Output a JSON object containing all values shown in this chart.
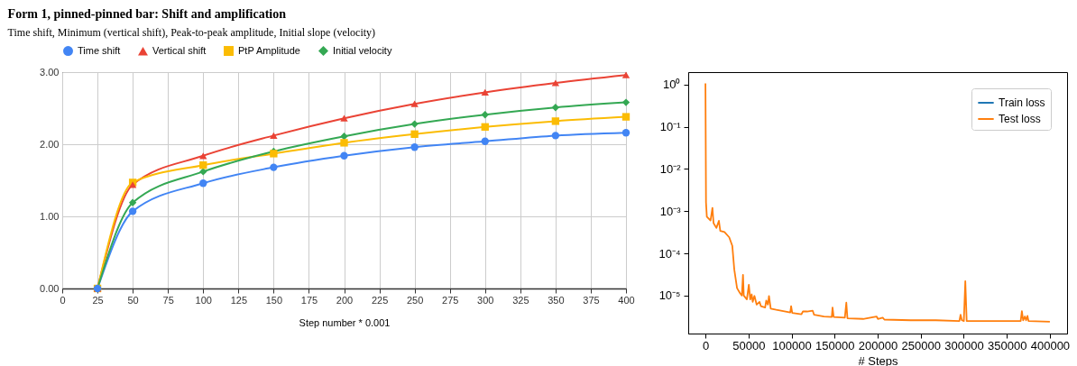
{
  "chart_data": [
    {
      "type": "line",
      "title": "Form 1, pinned-pinned bar: Shift and amplification",
      "subtitle": "Time shift, Minimum (vertical shift), Peak-to-peak amplitude, Initial slope (velocity)",
      "xlabel": "Step number * 0.001",
      "x": [
        25,
        50,
        100,
        150,
        200,
        250,
        300,
        350,
        400
      ],
      "series": [
        {
          "name": "Time shift",
          "color": "#4285f4",
          "marker": "circle",
          "values": [
            0,
            1.07,
            1.46,
            1.68,
            1.84,
            1.96,
            2.04,
            2.12,
            2.16
          ]
        },
        {
          "name": "Vertical shift",
          "color": "#ea4335",
          "marker": "triangle",
          "values": [
            0,
            1.44,
            1.84,
            2.12,
            2.36,
            2.56,
            2.72,
            2.85,
            2.96
          ]
        },
        {
          "name": "PtP Amplitude",
          "color": "#fbbc04",
          "marker": "square",
          "values": [
            0,
            1.47,
            1.71,
            1.87,
            2.02,
            2.14,
            2.24,
            2.32,
            2.38
          ]
        },
        {
          "name": "Initial velocity",
          "color": "#34a853",
          "marker": "diamond",
          "values": [
            0,
            1.19,
            1.62,
            1.9,
            2.11,
            2.28,
            2.41,
            2.51,
            2.58
          ]
        }
      ],
      "xlim": [
        0,
        400
      ],
      "xticks": [
        0,
        25,
        50,
        75,
        100,
        125,
        150,
        175,
        200,
        225,
        250,
        275,
        300,
        325,
        350,
        375,
        400
      ],
      "ylim": [
        0,
        3
      ],
      "yticks": [
        {
          "value": 0,
          "label": "0.00"
        },
        {
          "value": 1,
          "label": "1.00"
        },
        {
          "value": 2,
          "label": "2.00"
        },
        {
          "value": 3,
          "label": "3.00"
        }
      ],
      "grid": true,
      "legend": "top"
    },
    {
      "type": "line",
      "xlabel": "# Steps",
      "log": "y",
      "marker": "none",
      "grid": false,
      "legend": "top right",
      "xlim": [
        -20000,
        420000
      ],
      "xticks": [
        0,
        50000,
        100000,
        150000,
        200000,
        250000,
        300000,
        350000,
        400000
      ],
      "ylim": [
        1.26e-06,
        1.97
      ],
      "yticks": [
        {
          "value": 1,
          "label": "10⁰"
        },
        {
          "value": 0.1,
          "label": "10⁻¹"
        },
        {
          "value": 0.01,
          "label": "10⁻²"
        },
        {
          "value": 0.001,
          "label": "10⁻³"
        },
        {
          "value": 0.0001,
          "label": "10⁻⁴"
        },
        {
          "value": 1e-05,
          "label": "10⁻⁵"
        }
      ],
      "x": [
        0,
        650,
        1600,
        5900,
        8100,
        9400,
        12700,
        15600,
        17200,
        22100,
        27600,
        31200,
        33500,
        36700,
        40000,
        42300,
        43600,
        44500,
        48100,
        50400,
        52000,
        53700,
        54900,
        56900,
        59500,
        62800,
        64400,
        69300,
        70600,
        72500,
        73800,
        75800,
        82300,
        98500,
        99500,
        100800,
        111500,
        113200,
        118000,
        124500,
        126200,
        137600,
        146700,
        147600,
        148900,
        161900,
        163600,
        164900,
        183100,
        198700,
        200300,
        205900,
        207800,
        238400,
        267600,
        294900,
        296300,
        297800,
        300100,
        301800,
        303400,
        335900,
        366100,
        367500,
        369000,
        371000,
        372400,
        374000,
        375200,
        400000
      ],
      "series": [
        {
          "name": "Train loss",
          "color": "#1f77b4",
          "values": [
            null,
            null,
            null,
            null,
            null,
            null,
            null,
            null,
            null,
            null,
            null,
            null,
            null,
            null,
            null,
            null,
            null,
            null,
            null,
            null,
            null,
            null,
            null,
            null,
            null,
            null,
            null,
            null,
            null,
            null,
            null,
            null,
            null,
            null,
            null,
            null,
            null,
            null,
            null,
            null,
            null,
            null,
            null,
            null,
            null,
            null,
            null,
            null,
            null,
            null,
            null,
            null,
            null,
            null,
            null,
            null,
            null,
            null,
            null,
            null,
            null,
            null,
            null,
            null,
            null,
            null,
            null,
            null,
            null,
            null
          ]
        },
        {
          "name": "Test loss",
          "color": "#ff7f0e",
          "values": [
            1.07,
            0.0016,
            0.00074,
            0.0006,
            0.0012,
            0.00052,
            0.0004,
            0.00059,
            0.00034,
            0.00032,
            0.00024,
            0.00015,
            4.1e-05,
            1.5e-05,
            1.15e-05,
            1e-05,
            3.1e-05,
            1e-05,
            8.1e-06,
            1.8e-05,
            8.1e-06,
            1.07e-05,
            7.1e-06,
            9.8e-06,
            6.1e-06,
            7.1e-06,
            5.6e-06,
            5.2e-06,
            7.6e-06,
            6.1e-06,
            9.8e-06,
            4.9e-06,
            4.6e-06,
            4e-06,
            5.6e-06,
            3.9e-06,
            3.6e-06,
            4.2e-06,
            4.2e-06,
            4.4e-06,
            3.5e-06,
            3.2e-06,
            3.1e-06,
            5.2e-06,
            3.1e-06,
            3e-06,
            6.8e-06,
            2.9e-06,
            2.8e-06,
            3.2e-06,
            2.8e-06,
            3e-06,
            2.7e-06,
            2.6e-06,
            2.6e-06,
            2.5e-06,
            3.5e-06,
            2.6e-06,
            2.5e-06,
            2.2e-05,
            2.5e-06,
            2.5e-06,
            2.5e-06,
            4.3e-06,
            2.6e-06,
            3.2e-06,
            2.6e-06,
            3.3e-06,
            2.5e-06,
            2.4e-06
          ]
        }
      ]
    }
  ]
}
